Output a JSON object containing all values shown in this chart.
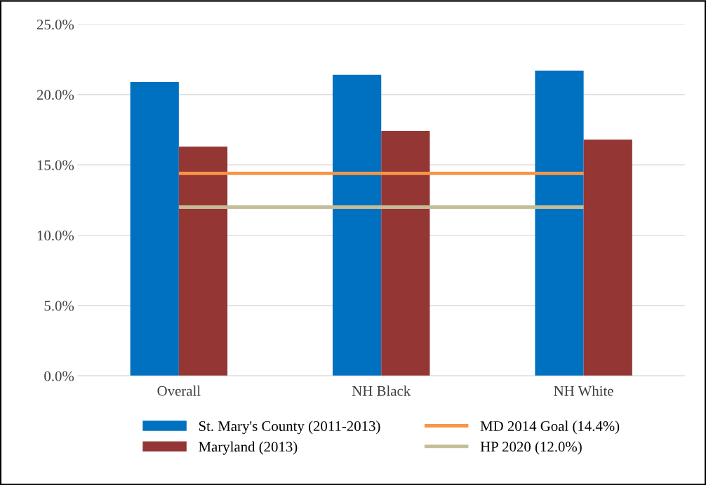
{
  "chart_data": {
    "type": "bar",
    "categories": [
      "Overall",
      "NH Black",
      "NH White"
    ],
    "series": [
      {
        "name": "St. Mary's County (2011-2013)",
        "color": "#0070c0",
        "values": [
          20.9,
          21.4,
          21.7
        ]
      },
      {
        "name": "Maryland (2013)",
        "color": "#943634",
        "values": [
          16.3,
          17.4,
          16.8
        ]
      },
      {
        "name": "MD 2014 Goal (14.4%)",
        "color": "#f79646",
        "type": "line",
        "values": [
          14.4,
          14.4,
          14.4
        ]
      },
      {
        "name": "HP 2020 (12.0%)",
        "color": "#c4bd97",
        "type": "line",
        "values": [
          12.0,
          12.0,
          12.0
        ]
      }
    ],
    "ylim": [
      0,
      25
    ],
    "yticks": [
      {
        "value": 0,
        "label": "0.0%"
      },
      {
        "value": 5,
        "label": "5.0%"
      },
      {
        "value": 10,
        "label": "10.0%"
      },
      {
        "value": 15,
        "label": "15.0%"
      },
      {
        "value": 20,
        "label": "20.0%"
      },
      {
        "value": 25,
        "label": "25.0%"
      }
    ],
    "grid": "y",
    "legend": "bottom",
    "marker": "none",
    "line_style": "solid"
  }
}
